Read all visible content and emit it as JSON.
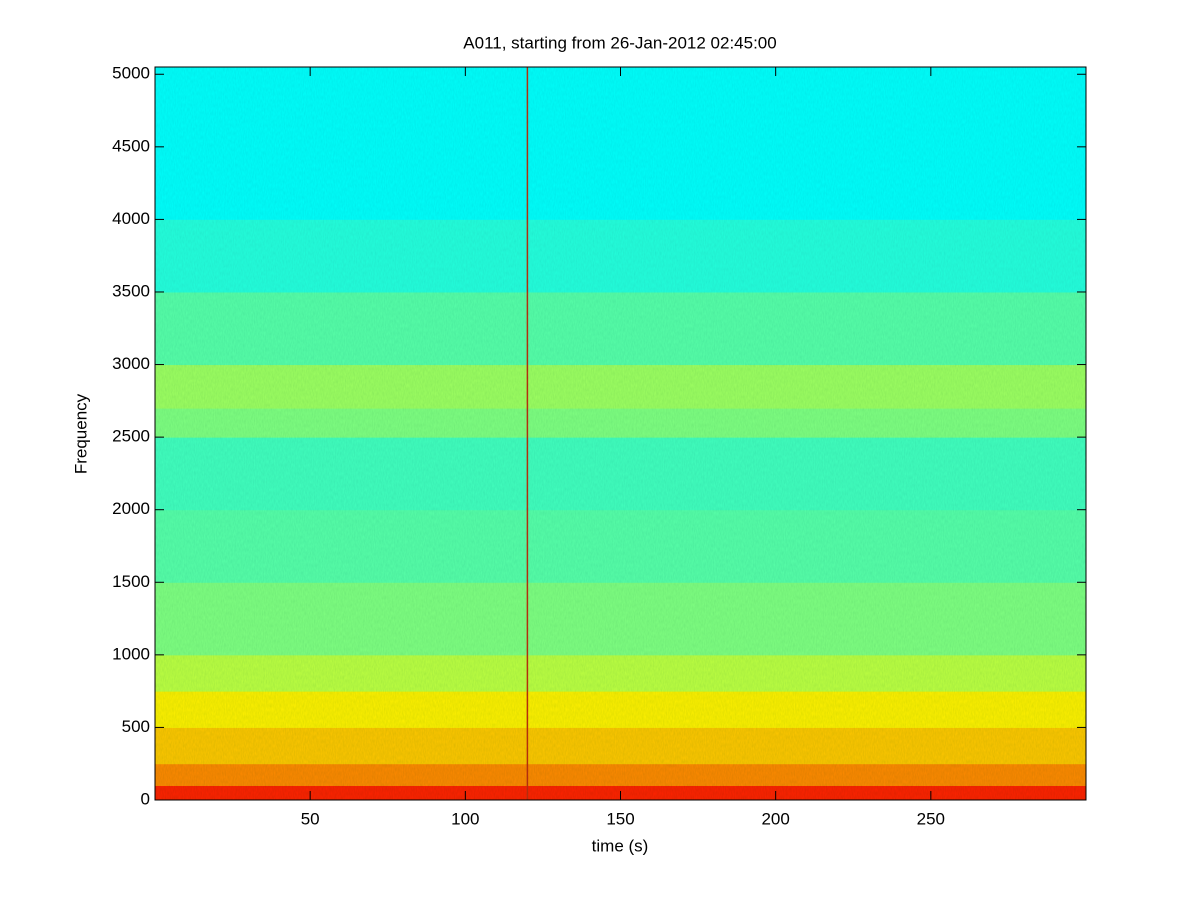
{
  "chart_data": {
    "type": "spectrogram",
    "title": "A011, starting from 26-Jan-2012 02:45:00",
    "x_label": "time (s)",
    "y_label": "Frequency",
    "colormap": "jet",
    "xlim": [
      0,
      300
    ],
    "xticks": [
      50,
      100,
      150,
      200,
      250
    ],
    "ylim": [
      0,
      5050
    ],
    "yticks": [
      0,
      500,
      1000,
      1500,
      2000,
      2500,
      3000,
      3500,
      4000,
      4500,
      5000
    ],
    "bins": [
      0,
      100,
      250,
      500,
      750,
      1000,
      1500,
      2000,
      2500,
      2700,
      3000,
      3500,
      4000,
      5050
    ],
    "levels": [
      0.84,
      0.74,
      0.68,
      0.64,
      0.56,
      0.5,
      0.46,
      0.44,
      0.5,
      0.53,
      0.46,
      0.41,
      0.38
    ],
    "lines_x": [
      120
    ]
  }
}
